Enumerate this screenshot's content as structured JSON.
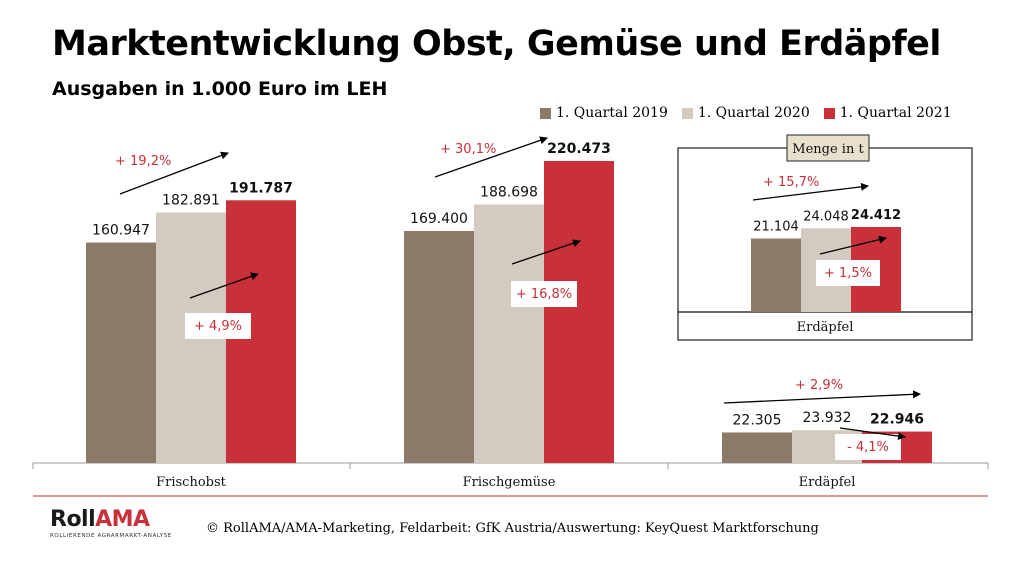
{
  "header": {
    "title": "Marktentwicklung Obst, Gemüse und Erdäpfel",
    "subtitle": "Ausgaben in 1.000 Euro im LEH"
  },
  "legend": [
    {
      "label": "1. Quartal 2019",
      "color": "#8b7a67"
    },
    {
      "label": "1. Quartal 2020",
      "color": "#d3cbbf"
    },
    {
      "label": "1. Quartal 2021",
      "color": "#c8313a"
    }
  ],
  "chart_data": [
    {
      "type": "bar",
      "title": "Ausgaben in 1.000 Euro im LEH",
      "categories": [
        "Frischobst",
        "Frischgemüse",
        "Erdäpfel"
      ],
      "series": [
        {
          "name": "1. Quartal 2019",
          "values": [
            160947,
            169400,
            22305
          ],
          "labels": [
            "160.947",
            "169.400",
            "22.305"
          ]
        },
        {
          "name": "1. Quartal 2020",
          "values": [
            182891,
            188698,
            23932
          ],
          "labels": [
            "182.891",
            "188.698",
            "23.932"
          ]
        },
        {
          "name": "1. Quartal 2021",
          "values": [
            191787,
            220473,
            22946
          ],
          "labels": [
            "191.787",
            "220.473",
            "22.946"
          ]
        }
      ],
      "ylim": [
        0,
        230000
      ],
      "annotations": [
        {
          "category": "Frischobst",
          "from": "1. Quartal 2019",
          "to": "1. Quartal 2021",
          "text": "+ 19,2%"
        },
        {
          "category": "Frischobst",
          "from": "1. Quartal 2020",
          "to": "1. Quartal 2021",
          "text": "+ 4,9%"
        },
        {
          "category": "Frischgemüse",
          "from": "1. Quartal 2019",
          "to": "1. Quartal 2021",
          "text": "+ 30,1%"
        },
        {
          "category": "Frischgemüse",
          "from": "1. Quartal 2020",
          "to": "1. Quartal 2021",
          "text": "+ 16,8%"
        },
        {
          "category": "Erdäpfel",
          "from": "1. Quartal 2019",
          "to": "1. Quartal 2021",
          "text": "+ 2,9%"
        },
        {
          "category": "Erdäpfel",
          "from": "1. Quartal 2020",
          "to": "1. Quartal 2021",
          "text": "- 4,1%"
        }
      ]
    },
    {
      "type": "bar",
      "title": "Menge in t",
      "categories": [
        "Erdäpfel"
      ],
      "series": [
        {
          "name": "1. Quartal 2019",
          "values": [
            21104
          ],
          "labels": [
            "21.104"
          ]
        },
        {
          "name": "1. Quartal 2020",
          "values": [
            24048
          ],
          "labels": [
            "24.048"
          ]
        },
        {
          "name": "1. Quartal 2021",
          "values": [
            24412
          ],
          "labels": [
            "24.412"
          ]
        }
      ],
      "ylim": [
        0,
        30000
      ],
      "annotations": [
        {
          "category": "Erdäpfel",
          "from": "1. Quartal 2019",
          "to": "1. Quartal 2021",
          "text": "+ 15,7%"
        },
        {
          "category": "Erdäpfel",
          "from": "1. Quartal 2020",
          "to": "1. Quartal 2021",
          "text": "+ 1,5%"
        }
      ]
    }
  ],
  "footer": {
    "logo_roll": "Roll",
    "logo_ama": "AMA",
    "logo_sub": "ROLLIERENDE AGRARMARKT-ANALYSE",
    "source": "© RollAMA/AMA-Marketing, Feldarbeit: GfK Austria/Auswertung: KeyQuest Marktforschung",
    "rule_color": "#c8313a"
  }
}
